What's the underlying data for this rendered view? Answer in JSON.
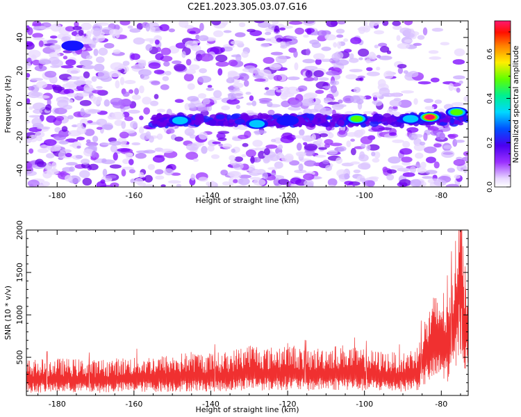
{
  "figure": {
    "title": "C2E1.2023.305.03.07.G16"
  },
  "chart_data": [
    {
      "type": "heatmap",
      "xlabel": "Height of straight line (km)",
      "ylabel": "Frequency (Hz)",
      "xlim": [
        -188,
        -73
      ],
      "ylim": [
        -50,
        50
      ],
      "xticks": [
        -180,
        -160,
        -140,
        -120,
        -100,
        -80
      ],
      "yticks": [
        -40,
        -20,
        0,
        20,
        40
      ],
      "grid": false,
      "colorbar": {
        "label": "Normalized spectral amplitude",
        "range": [
          0.0,
          0.75
        ],
        "ticks": [
          "0.0",
          "0.2",
          "0.4",
          "0.6"
        ],
        "colors": [
          "#ffffff",
          "#e8d8ff",
          "#9b30ff",
          "#6a00e8",
          "#1414ff",
          "#00c8ff",
          "#00f0a0",
          "#50ff00",
          "#ffee00",
          "#ff8000",
          "#ff1000",
          "#ff1060"
        ]
      },
      "features": [
        {
          "x": -176,
          "y": 35,
          "amplitude": 0.25
        },
        {
          "x": -148,
          "y": -10,
          "amplitude": 0.38
        },
        {
          "x": -128,
          "y": -12,
          "amplitude": 0.45
        },
        {
          "x": -120,
          "y": -10,
          "amplitude": 0.3
        },
        {
          "x": -102,
          "y": -9,
          "amplitude": 0.5
        },
        {
          "x": -88,
          "y": -9,
          "amplitude": 0.4
        },
        {
          "x": -83,
          "y": -8,
          "amplitude": 0.75
        },
        {
          "x": -76,
          "y": -5,
          "amplitude": 0.6
        }
      ]
    },
    {
      "type": "line",
      "xlabel": "Height of straight line (km)",
      "ylabel": "SNR (10 * v/v)",
      "xlim": [
        -188,
        -73
      ],
      "ylim": [
        50,
        2000
      ],
      "xticks": [
        -180,
        -160,
        -140,
        -120,
        -100,
        -80
      ],
      "yticks": [
        500,
        1000,
        1500,
        2000
      ],
      "grid": false,
      "line_color": "#f03030",
      "series": [
        {
          "x": [
            -188,
            -180,
            -170,
            -160,
            -150,
            -145,
            -140,
            -135,
            -130,
            -128,
            -125,
            -120,
            -115,
            -110,
            -105,
            -100,
            -95,
            -90,
            -86,
            -84,
            -82,
            -80,
            -78,
            -76,
            -75,
            -74,
            -73
          ],
          "y": [
            230,
            240,
            230,
            250,
            260,
            280,
            270,
            280,
            330,
            320,
            300,
            330,
            290,
            310,
            320,
            290,
            280,
            270,
            320,
            500,
            600,
            650,
            600,
            1000,
            1600,
            900,
            800
          ]
        }
      ]
    }
  ]
}
